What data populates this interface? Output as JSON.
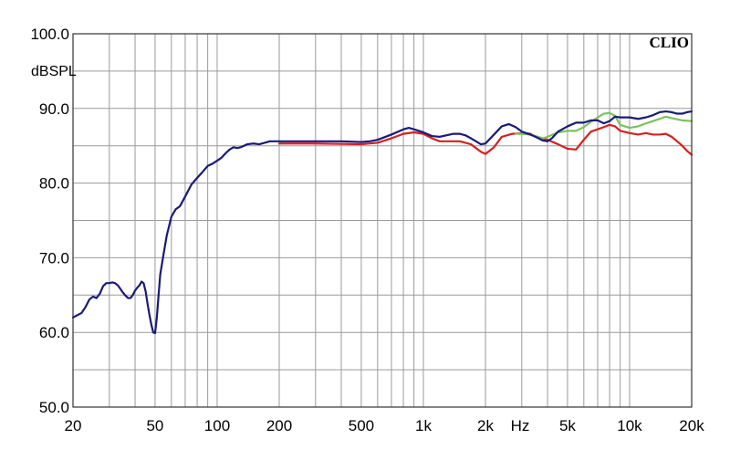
{
  "chart_data": {
    "type": "line",
    "brand": "CLIO",
    "xlabel": "Hz",
    "ylabel": "dBSPL",
    "x_scale": "log",
    "xlim": [
      20,
      20000
    ],
    "ylim": [
      50,
      100
    ],
    "grid": true,
    "x_ticks": [
      {
        "value": 20,
        "label": "20"
      },
      {
        "value": 50,
        "label": "50"
      },
      {
        "value": 100,
        "label": "100"
      },
      {
        "value": 200,
        "label": "200"
      },
      {
        "value": 500,
        "label": "500"
      },
      {
        "value": 1000,
        "label": "1k"
      },
      {
        "value": 2000,
        "label": "2k"
      },
      {
        "value": 5000,
        "label": "5k"
      },
      {
        "value": 10000,
        "label": "10k"
      },
      {
        "value": 20000,
        "label": "20k"
      }
    ],
    "y_ticks": [
      {
        "value": 50,
        "label": "50.0"
      },
      {
        "value": 60,
        "label": "60.0"
      },
      {
        "value": 70,
        "label": "70.0"
      },
      {
        "value": 80,
        "label": "80.0"
      },
      {
        "value": 90,
        "label": "90.0"
      },
      {
        "value": 100,
        "label": "100.0"
      }
    ],
    "series": [
      {
        "color": "#d42020",
        "points": [
          [
            200,
            85.3
          ],
          [
            300,
            85.3
          ],
          [
            500,
            85.2
          ],
          [
            600,
            85.4
          ],
          [
            700,
            86.0
          ],
          [
            800,
            86.6
          ],
          [
            900,
            86.8
          ],
          [
            1000,
            86.6
          ],
          [
            1100,
            86.0
          ],
          [
            1200,
            85.6
          ],
          [
            1500,
            85.6
          ],
          [
            1700,
            85.2
          ],
          [
            1900,
            84.2
          ],
          [
            2000,
            83.9
          ],
          [
            2200,
            84.8
          ],
          [
            2400,
            86.2
          ],
          [
            2700,
            86.6
          ],
          [
            3100,
            86.7
          ],
          [
            3300,
            86.6
          ],
          [
            3500,
            86.2
          ],
          [
            4000,
            85.8
          ],
          [
            4500,
            85.2
          ],
          [
            5000,
            84.6
          ],
          [
            5500,
            84.5
          ],
          [
            6000,
            85.8
          ],
          [
            6500,
            86.9
          ],
          [
            7000,
            87.2
          ],
          [
            7500,
            87.5
          ],
          [
            8000,
            87.8
          ],
          [
            8500,
            87.6
          ],
          [
            9000,
            87.0
          ],
          [
            10000,
            86.7
          ],
          [
            11000,
            86.5
          ],
          [
            12000,
            86.7
          ],
          [
            13000,
            86.5
          ],
          [
            14000,
            86.5
          ],
          [
            15000,
            86.6
          ],
          [
            16000,
            86.2
          ],
          [
            17000,
            85.6
          ],
          [
            18000,
            85.0
          ],
          [
            19000,
            84.3
          ],
          [
            20000,
            83.8
          ]
        ]
      },
      {
        "color": "#7cc25a",
        "points": [
          [
            2800,
            86.6
          ],
          [
            3000,
            86.6
          ],
          [
            3300,
            86.5
          ],
          [
            3500,
            86.3
          ],
          [
            3800,
            86.0
          ],
          [
            4000,
            86.2
          ],
          [
            4500,
            86.8
          ],
          [
            5000,
            87.0
          ],
          [
            5500,
            87.0
          ],
          [
            6000,
            87.5
          ],
          [
            6500,
            88.2
          ],
          [
            7000,
            88.8
          ],
          [
            7500,
            89.3
          ],
          [
            8000,
            89.4
          ],
          [
            8500,
            89.0
          ],
          [
            9000,
            87.8
          ],
          [
            10000,
            87.4
          ],
          [
            11000,
            87.6
          ],
          [
            12000,
            88.0
          ],
          [
            13000,
            88.3
          ],
          [
            14000,
            88.6
          ],
          [
            15000,
            88.9
          ],
          [
            16000,
            88.7
          ],
          [
            18000,
            88.4
          ],
          [
            20000,
            88.3
          ]
        ]
      },
      {
        "color": "#1a1a7a",
        "points": [
          [
            20,
            62.0
          ],
          [
            22,
            62.6
          ],
          [
            23,
            63.4
          ],
          [
            24,
            64.4
          ],
          [
            25,
            64.8
          ],
          [
            26,
            64.6
          ],
          [
            27,
            65.2
          ],
          [
            28,
            66.2
          ],
          [
            29,
            66.6
          ],
          [
            30,
            66.6
          ],
          [
            31,
            66.7
          ],
          [
            32,
            66.6
          ],
          [
            33,
            66.3
          ],
          [
            34,
            65.8
          ],
          [
            35,
            65.3
          ],
          [
            36,
            64.9
          ],
          [
            37,
            64.6
          ],
          [
            38,
            64.6
          ],
          [
            39,
            65.0
          ],
          [
            40,
            65.6
          ],
          [
            41,
            66.0
          ],
          [
            42,
            66.3
          ],
          [
            43,
            66.8
          ],
          [
            44,
            66.6
          ],
          [
            45,
            65.5
          ],
          [
            46,
            63.8
          ],
          [
            47,
            62.3
          ],
          [
            48,
            61.0
          ],
          [
            49,
            60.0
          ],
          [
            50,
            59.9
          ],
          [
            51,
            62.0
          ],
          [
            52,
            65.0
          ],
          [
            53,
            67.8
          ],
          [
            55,
            70.5
          ],
          [
            57,
            73.0
          ],
          [
            60,
            75.5
          ],
          [
            63,
            76.5
          ],
          [
            66,
            76.9
          ],
          [
            70,
            78.2
          ],
          [
            75,
            79.8
          ],
          [
            80,
            80.7
          ],
          [
            85,
            81.5
          ],
          [
            90,
            82.3
          ],
          [
            95,
            82.6
          ],
          [
            100,
            83.0
          ],
          [
            105,
            83.4
          ],
          [
            110,
            84.0
          ],
          [
            115,
            84.5
          ],
          [
            120,
            84.8
          ],
          [
            125,
            84.7
          ],
          [
            130,
            84.8
          ],
          [
            140,
            85.2
          ],
          [
            150,
            85.3
          ],
          [
            160,
            85.2
          ],
          [
            170,
            85.4
          ],
          [
            180,
            85.6
          ],
          [
            200,
            85.6
          ],
          [
            300,
            85.6
          ],
          [
            400,
            85.6
          ],
          [
            500,
            85.5
          ],
          [
            550,
            85.6
          ],
          [
            600,
            85.8
          ],
          [
            700,
            86.5
          ],
          [
            800,
            87.2
          ],
          [
            850,
            87.4
          ],
          [
            900,
            87.2
          ],
          [
            1000,
            86.8
          ],
          [
            1100,
            86.3
          ],
          [
            1200,
            86.2
          ],
          [
            1400,
            86.6
          ],
          [
            1500,
            86.6
          ],
          [
            1600,
            86.4
          ],
          [
            1700,
            86.0
          ],
          [
            1800,
            85.6
          ],
          [
            1900,
            85.2
          ],
          [
            2000,
            85.3
          ],
          [
            2200,
            86.5
          ],
          [
            2400,
            87.6
          ],
          [
            2600,
            87.9
          ],
          [
            2800,
            87.5
          ],
          [
            3000,
            86.9
          ],
          [
            3300,
            86.5
          ],
          [
            3500,
            86.2
          ],
          [
            3800,
            85.7
          ],
          [
            4000,
            85.6
          ],
          [
            4200,
            86.0
          ],
          [
            4500,
            86.9
          ],
          [
            5000,
            87.6
          ],
          [
            5500,
            88.1
          ],
          [
            6000,
            88.1
          ],
          [
            6500,
            88.4
          ],
          [
            7000,
            88.4
          ],
          [
            7500,
            88.0
          ],
          [
            8000,
            88.3
          ],
          [
            8500,
            88.9
          ],
          [
            9000,
            88.8
          ],
          [
            10000,
            88.8
          ],
          [
            11000,
            88.6
          ],
          [
            12000,
            88.8
          ],
          [
            13000,
            89.1
          ],
          [
            14000,
            89.5
          ],
          [
            15000,
            89.6
          ],
          [
            16000,
            89.5
          ],
          [
            17000,
            89.3
          ],
          [
            18000,
            89.3
          ],
          [
            19000,
            89.5
          ],
          [
            20000,
            89.6
          ]
        ]
      }
    ]
  }
}
